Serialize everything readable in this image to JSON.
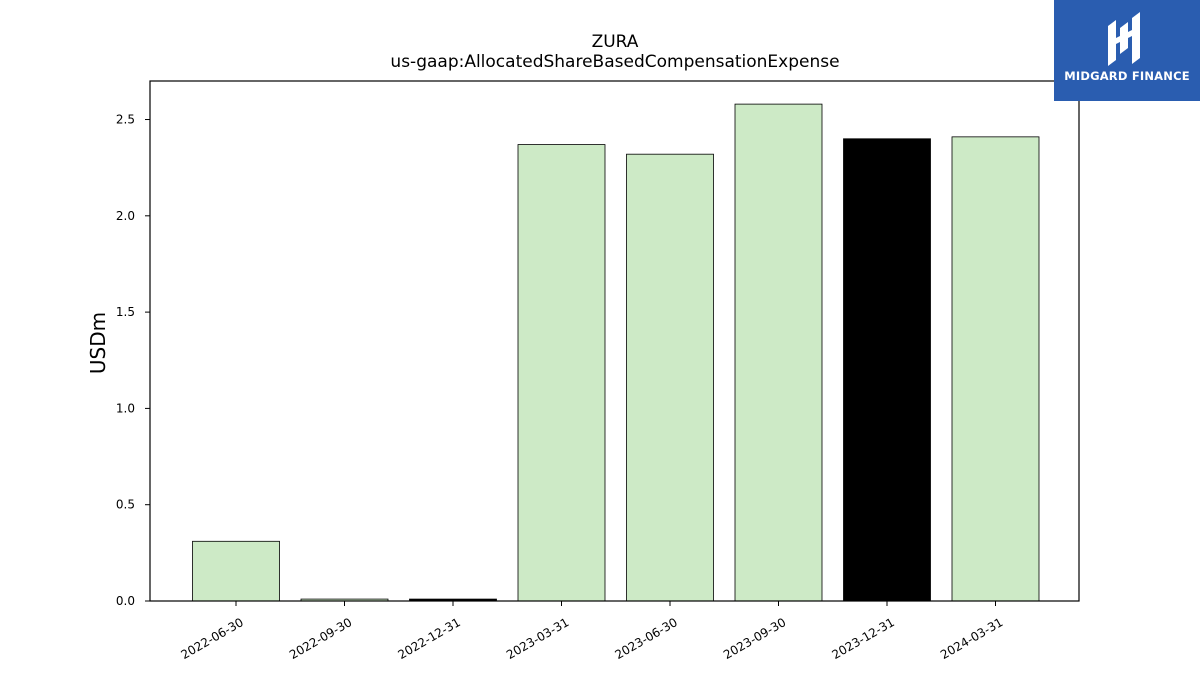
{
  "chart_data": {
    "type": "bar",
    "title": "ZURA",
    "subtitle": "us-gaap:AllocatedShareBasedCompensationExpense",
    "ylabel": "USDm",
    "xlabel": "",
    "categories": [
      "2022-06-30",
      "2022-09-30",
      "2022-12-31",
      "2023-03-31",
      "2023-06-30",
      "2023-09-30",
      "2023-12-31",
      "2024-03-31"
    ],
    "values": [
      0.31,
      0.01,
      0.01,
      2.37,
      2.32,
      2.58,
      2.4,
      2.41
    ],
    "bar_colors": [
      "#cdeac6",
      "#cdeac6",
      "#000000",
      "#cdeac6",
      "#cdeac6",
      "#cdeac6",
      "#000000",
      "#cdeac6"
    ],
    "ylim": [
      0,
      2.7
    ],
    "yticks": [
      "0.0",
      "0.5",
      "1.0",
      "1.5",
      "2.0",
      "2.5"
    ],
    "grid": false,
    "legend": "none"
  },
  "logo": {
    "text": "MIDGARD FINANCE",
    "background": "#2a5db0"
  }
}
